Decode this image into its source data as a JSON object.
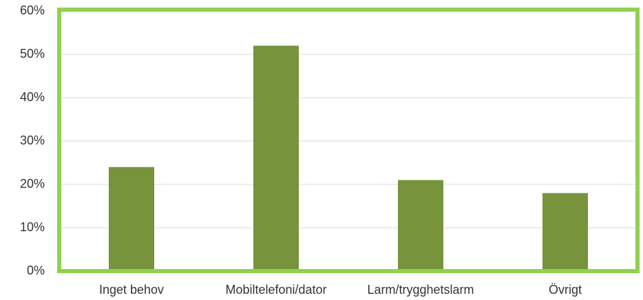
{
  "chart_data": {
    "type": "bar",
    "categories": [
      "Inget behov",
      "Mobiltelefoni/dator",
      "Larm/trygghetslarm",
      "Övrigt"
    ],
    "values": [
      24,
      52,
      21,
      18
    ],
    "color": "#77933c",
    "frame_color": "#92d050",
    "ylim": [
      0,
      60
    ],
    "yticks": [
      {
        "value": 0,
        "label": "0%"
      },
      {
        "value": 10,
        "label": "10%"
      },
      {
        "value": 20,
        "label": "20%"
      },
      {
        "value": 30,
        "label": "30%"
      },
      {
        "value": 40,
        "label": "40%"
      },
      {
        "value": 50,
        "label": "50%"
      },
      {
        "value": 60,
        "label": "60%"
      }
    ],
    "grid": true
  }
}
